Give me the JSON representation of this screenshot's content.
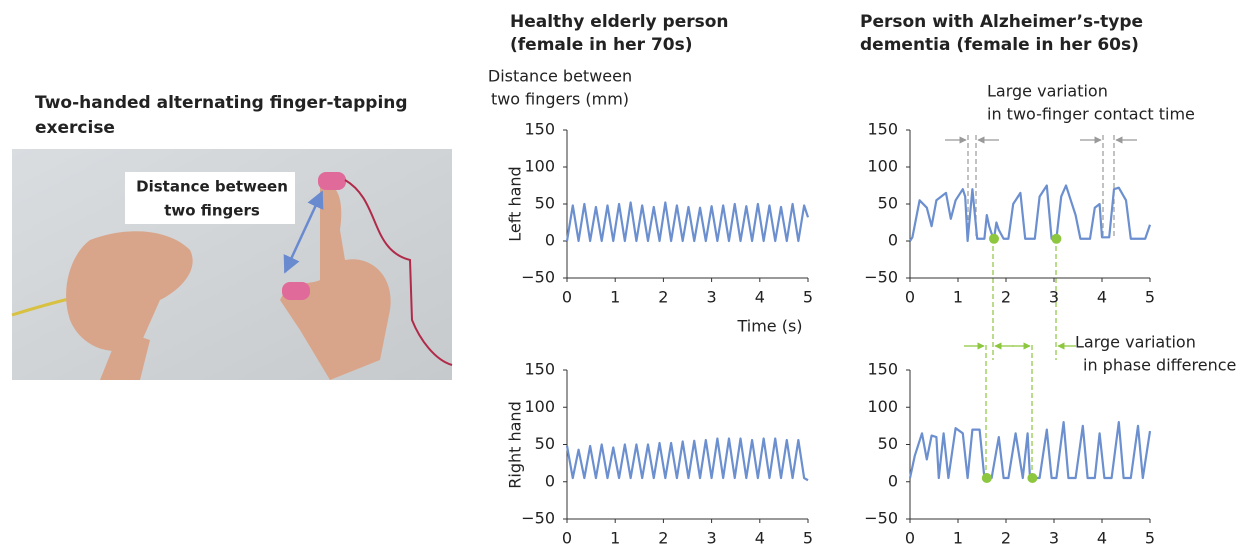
{
  "photo": {
    "title": [
      "Two-handed alternating finger-tapping",
      "exercise"
    ],
    "label": [
      "Distance between",
      "two fingers"
    ]
  },
  "chart_data": [
    {
      "type": "line",
      "title": [
        "Healthy elderly person",
        "(female in her 70s)"
      ],
      "units_label": [
        "Distance between",
        "two fingers (mm)"
      ],
      "ylabel": "Left hand",
      "xlabel": "Time (s)",
      "xlim": [
        0,
        5
      ],
      "ylim": [
        -50,
        150
      ],
      "xticks": [
        0,
        1,
        2,
        3,
        4,
        5
      ],
      "yticks": [
        {
          "value": -50,
          "label": "−50"
        },
        0,
        50,
        100,
        150
      ],
      "x": [
        0,
        0.12,
        0.24,
        0.36,
        0.48,
        0.6,
        0.72,
        0.84,
        0.96,
        1.08,
        1.2,
        1.32,
        1.44,
        1.56,
        1.68,
        1.8,
        1.92,
        2.04,
        2.16,
        2.28,
        2.4,
        2.52,
        2.64,
        2.76,
        2.88,
        3.0,
        3.12,
        3.24,
        3.36,
        3.48,
        3.6,
        3.72,
        3.84,
        3.96,
        4.08,
        4.2,
        4.32,
        4.44,
        4.56,
        4.68,
        4.8,
        4.92,
        5.0
      ],
      "series": [
        {
          "color": "#6b8fcf",
          "values": [
            0,
            48,
            0,
            50,
            0,
            46,
            0,
            48,
            0,
            50,
            0,
            52,
            0,
            48,
            0,
            46,
            0,
            52,
            0,
            48,
            0,
            46,
            0,
            45,
            0,
            47,
            0,
            48,
            0,
            50,
            0,
            47,
            0,
            50,
            0,
            48,
            0,
            46,
            0,
            50,
            0,
            48,
            32
          ]
        }
      ]
    },
    {
      "type": "line",
      "ylabel": "Right hand",
      "xlim": [
        0,
        5
      ],
      "ylim": [
        -50,
        150
      ],
      "xticks": [
        0,
        1,
        2,
        3,
        4,
        5
      ],
      "yticks": [
        {
          "value": -50,
          "label": "−50"
        },
        0,
        50,
        100,
        150
      ],
      "x": [
        0,
        0.12,
        0.24,
        0.36,
        0.48,
        0.6,
        0.72,
        0.84,
        0.96,
        1.08,
        1.2,
        1.32,
        1.44,
        1.56,
        1.68,
        1.8,
        1.92,
        2.04,
        2.16,
        2.28,
        2.4,
        2.52,
        2.64,
        2.76,
        2.88,
        3.0,
        3.12,
        3.24,
        3.36,
        3.48,
        3.6,
        3.72,
        3.84,
        3.96,
        4.08,
        4.2,
        4.32,
        4.44,
        4.56,
        4.68,
        4.8,
        4.92,
        5.0
      ],
      "series": [
        {
          "color": "#6b8fcf",
          "values": [
            48,
            5,
            43,
            5,
            48,
            5,
            50,
            5,
            46,
            5,
            50,
            5,
            50,
            5,
            50,
            5,
            52,
            5,
            52,
            5,
            54,
            5,
            55,
            5,
            56,
            5,
            58,
            5,
            58,
            5,
            58,
            5,
            56,
            5,
            58,
            5,
            58,
            5,
            56,
            5,
            56,
            5,
            2
          ]
        }
      ]
    },
    {
      "type": "line",
      "title": [
        "Person with Alzheimer’s-type",
        "dementia (female in her 60s)"
      ],
      "annotation": [
        "Large variation",
        "in two-finger contact time"
      ],
      "xlim": [
        0,
        5
      ],
      "ylim": [
        -50,
        150
      ],
      "xticks": [
        0,
        1,
        2,
        3,
        4,
        5
      ],
      "yticks": [
        {
          "value": -50,
          "label": "−50"
        },
        0,
        50,
        100,
        150
      ],
      "x": [
        0,
        0.05,
        0.2,
        0.35,
        0.45,
        0.55,
        0.75,
        0.85,
        0.95,
        1.1,
        1.15,
        1.2,
        1.3,
        1.4,
        1.55,
        1.6,
        1.65,
        1.7,
        1.75,
        1.8,
        1.85,
        1.95,
        2.05,
        2.15,
        2.3,
        2.4,
        2.6,
        2.7,
        2.85,
        2.95,
        3.05,
        3.15,
        3.25,
        3.35,
        3.45,
        3.55,
        3.75,
        3.85,
        3.95,
        4.0,
        4.15,
        4.25,
        4.35,
        4.5,
        4.6,
        4.9,
        5.0
      ],
      "series": [
        {
          "color": "#6b8fcf",
          "values": [
            0,
            5,
            55,
            45,
            20,
            55,
            65,
            30,
            55,
            70,
            60,
            0,
            70,
            3,
            3,
            35,
            20,
            10,
            3,
            25,
            15,
            3,
            3,
            50,
            65,
            3,
            3,
            60,
            75,
            3,
            3,
            60,
            75,
            55,
            35,
            3,
            3,
            45,
            50,
            5,
            5,
            70,
            72,
            55,
            3,
            3,
            22
          ]
        }
      ],
      "highlights": {
        "color": "#8dc63f",
        "x": [
          1.75,
          3.05
        ],
        "values": [
          3,
          3
        ]
      }
    },
    {
      "type": "line",
      "annotation": [
        "Large variation",
        "in phase difference"
      ],
      "xlim": [
        0,
        5
      ],
      "ylim": [
        -50,
        150
      ],
      "xticks": [
        0,
        1,
        2,
        3,
        4,
        5
      ],
      "yticks": [
        {
          "value": -50,
          "label": "−50"
        },
        0,
        50,
        100,
        150
      ],
      "x": [
        0,
        0.1,
        0.25,
        0.35,
        0.45,
        0.55,
        0.6,
        0.7,
        0.8,
        0.95,
        1.1,
        1.2,
        1.3,
        1.45,
        1.55,
        1.7,
        1.85,
        1.95,
        2.05,
        2.2,
        2.35,
        2.45,
        2.5,
        2.7,
        2.85,
        2.95,
        3.05,
        3.2,
        3.3,
        3.45,
        3.6,
        3.7,
        3.85,
        3.95,
        4.05,
        4.2,
        4.35,
        4.45,
        4.6,
        4.75,
        4.85,
        5.0
      ],
      "series": [
        {
          "color": "#6b8fcf",
          "values": [
            5,
            35,
            65,
            30,
            62,
            60,
            5,
            65,
            5,
            72,
            65,
            5,
            70,
            70,
            5,
            5,
            60,
            5,
            5,
            65,
            5,
            65,
            5,
            5,
            70,
            5,
            5,
            80,
            5,
            5,
            75,
            5,
            5,
            65,
            5,
            5,
            80,
            5,
            5,
            75,
            5,
            68
          ]
        }
      ],
      "highlights": {
        "color": "#8dc63f",
        "x": [
          1.6,
          2.55
        ],
        "values": [
          5,
          5
        ]
      }
    }
  ]
}
